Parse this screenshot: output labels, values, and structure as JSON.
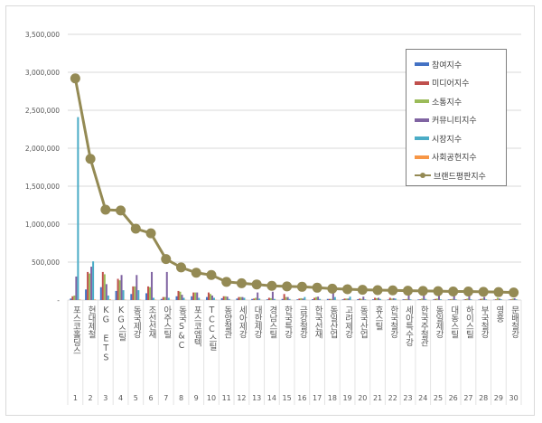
{
  "chart_data": {
    "type": "bar+line",
    "title": "",
    "xlabel": "",
    "ylabel": "",
    "ylim": [
      0,
      3500000
    ],
    "yticks": [
      "-",
      "500,000",
      "1,000,000",
      "1,500,000",
      "2,000,000",
      "2,500,000",
      "3,000,000",
      "3,500,000"
    ],
    "grid": true,
    "legend_position": "top-right",
    "categories": [
      "포스코홀딩스",
      "현대제철",
      "KG ETS",
      "KG스틸",
      "동국제강",
      "조선선재",
      "아주스틸",
      "동국S&C",
      "포스코엠텍",
      "TCC스틸",
      "동양철관",
      "세아제강",
      "대한제강",
      "경남스틸",
      "한국특강",
      "금강철강",
      "한국선재",
      "동일산업",
      "고려제강",
      "동국산업",
      "휴스틸",
      "한국철강",
      "세아특수강",
      "한국주철관",
      "동일제강",
      "대동스틸",
      "하이스틸",
      "부국철강",
      "영흥",
      "문배철강"
    ],
    "numbers": [
      "1",
      "2",
      "3",
      "4",
      "5",
      "6",
      "7",
      "8",
      "9",
      "10",
      "11",
      "12",
      "13",
      "14",
      "15",
      "16",
      "17",
      "18",
      "19",
      "20",
      "21",
      "22",
      "23",
      "24",
      "25",
      "26",
      "27",
      "28",
      "29",
      "30"
    ],
    "series": [
      {
        "name": "참여지수",
        "type": "bar",
        "color": "#4472C4",
        "values": [
          20000,
          140000,
          170000,
          120000,
          80000,
          90000,
          15000,
          50000,
          50000,
          40000,
          25000,
          20000,
          15000,
          10000,
          15000,
          10000,
          12000,
          15000,
          10000,
          12000,
          10000,
          8000,
          10000,
          8000,
          8000,
          8000,
          6000,
          6000,
          5000,
          6000
        ]
      },
      {
        "name": "미디어지수",
        "type": "bar",
        "color": "#C0504D",
        "values": [
          50000,
          370000,
          370000,
          280000,
          180000,
          180000,
          40000,
          120000,
          100000,
          100000,
          50000,
          40000,
          20000,
          30000,
          80000,
          20000,
          30000,
          15000,
          20000,
          20000,
          30000,
          30000,
          10000,
          10000,
          15000,
          10000,
          12000,
          15000,
          10000,
          10000
        ]
      },
      {
        "name": "소통지수",
        "type": "bar",
        "color": "#9BBB59",
        "values": [
          60000,
          350000,
          340000,
          260000,
          180000,
          170000,
          40000,
          110000,
          100000,
          80000,
          50000,
          40000,
          30000,
          25000,
          40000,
          25000,
          40000,
          15000,
          20000,
          15000,
          25000,
          20000,
          15000,
          20000,
          20000,
          15000,
          20000,
          20000,
          30000,
          20000
        ]
      },
      {
        "name": "커뮤니티지수",
        "type": "bar",
        "color": "#8064A2",
        "values": [
          310000,
          440000,
          210000,
          330000,
          330000,
          370000,
          370000,
          70000,
          100000,
          60000,
          45000,
          40000,
          100000,
          110000,
          40000,
          20000,
          45000,
          100000,
          20000,
          45000,
          30000,
          25000,
          110000,
          80000,
          100000,
          100000,
          90000,
          40000,
          20000,
          25000
        ]
      },
      {
        "name": "시장지수",
        "type": "bar",
        "color": "#4BACC6",
        "values": [
          2410000,
          510000,
          60000,
          130000,
          130000,
          30000,
          30000,
          30000,
          30000,
          30000,
          15000,
          30000,
          20000,
          15000,
          15000,
          40000,
          15000,
          40000,
          45000,
          10000,
          15000,
          20000,
          10000,
          15000,
          10000,
          10000,
          10000,
          10000,
          10000,
          10000
        ]
      },
      {
        "name": "사회공헌지수",
        "type": "bar",
        "color": "#F79646",
        "values": [
          8000,
          8000,
          10000,
          5000,
          5000,
          5000,
          3000,
          3000,
          3000,
          3000,
          2000,
          2000,
          2000,
          2000,
          2000,
          2000,
          2000,
          2000,
          2000,
          2000,
          2000,
          2000,
          2000,
          2000,
          2000,
          2000,
          2000,
          2000,
          2000,
          2000
        ]
      },
      {
        "name": "브랜드평판지수",
        "type": "line",
        "color": "#948A54",
        "values": [
          2920000,
          1860000,
          1190000,
          1180000,
          940000,
          880000,
          540000,
          430000,
          360000,
          330000,
          240000,
          222000,
          206000,
          187000,
          180000,
          175000,
          163000,
          150000,
          143000,
          135000,
          131000,
          128000,
          124000,
          120000,
          117000,
          113000,
          113000,
          109000,
          105000,
          100000
        ]
      }
    ]
  }
}
